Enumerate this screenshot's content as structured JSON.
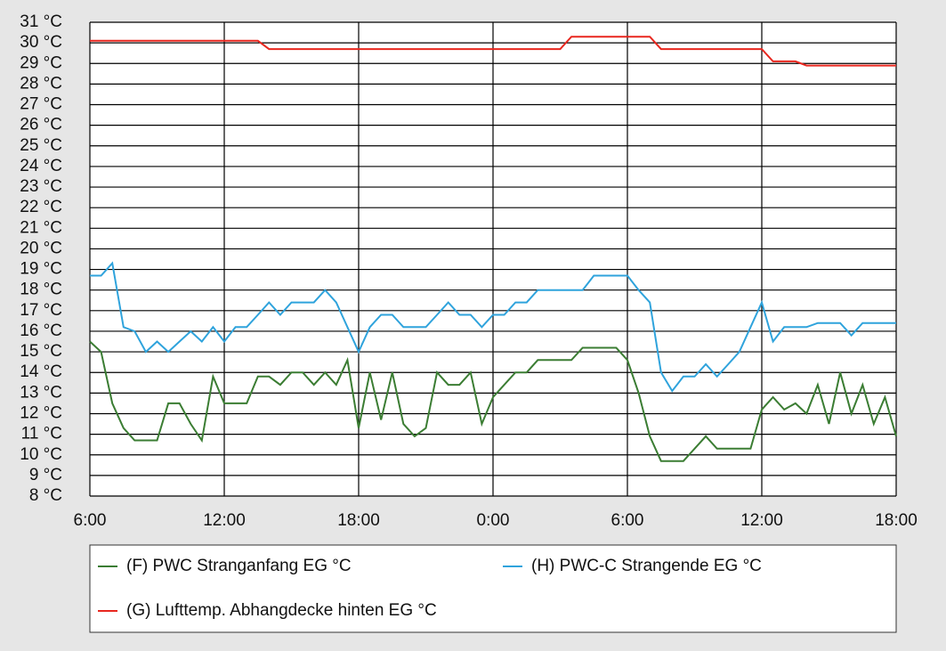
{
  "chart_data": {
    "type": "line",
    "x": [
      0,
      0.5,
      1,
      1.5,
      2,
      2.5,
      3,
      3.5,
      4,
      4.5,
      5,
      5.5,
      6,
      6.5,
      7,
      7.5,
      8,
      8.5,
      9,
      9.5,
      10,
      10.5,
      11,
      11.5,
      12,
      12.5,
      13,
      13.5,
      14,
      14.5,
      15,
      15.5,
      16,
      16.5,
      17,
      17.5,
      18,
      18.5,
      19,
      19.5,
      20,
      20.5,
      21,
      21.5,
      22,
      22.5,
      23,
      23.5,
      24,
      24.5,
      25,
      25.5,
      26,
      26.5,
      27,
      27.5,
      28,
      28.5,
      29,
      29.5,
      30,
      30.5,
      31,
      31.5,
      32,
      32.5,
      33,
      33.5,
      34,
      34.5,
      35,
      35.5,
      36
    ],
    "xlim": [
      0,
      36
    ],
    "xticks": [
      {
        "value": 0,
        "label": "6:00"
      },
      {
        "value": 6,
        "label": "12:00"
      },
      {
        "value": 12,
        "label": "18:00"
      },
      {
        "value": 18,
        "label": "0:00"
      },
      {
        "value": 24,
        "label": "6:00"
      },
      {
        "value": 30,
        "label": "12:00"
      },
      {
        "value": 36,
        "label": "18:00"
      }
    ],
    "ylim": [
      8,
      31
    ],
    "yticks": [
      {
        "value": 8,
        "label": "8 °C"
      },
      {
        "value": 9,
        "label": "9 °C"
      },
      {
        "value": 10,
        "label": "10 °C"
      },
      {
        "value": 11,
        "label": "11 °C"
      },
      {
        "value": 12,
        "label": "12 °C"
      },
      {
        "value": 13,
        "label": "13 °C"
      },
      {
        "value": 14,
        "label": "14 °C"
      },
      {
        "value": 15,
        "label": "15 °C"
      },
      {
        "value": 16,
        "label": "16 °C"
      },
      {
        "value": 17,
        "label": "17 °C"
      },
      {
        "value": 18,
        "label": "18 °C"
      },
      {
        "value": 19,
        "label": "19 °C"
      },
      {
        "value": 20,
        "label": "20 °C"
      },
      {
        "value": 21,
        "label": "21 °C"
      },
      {
        "value": 22,
        "label": "22 °C"
      },
      {
        "value": 23,
        "label": "23 °C"
      },
      {
        "value": 24,
        "label": "24 °C"
      },
      {
        "value": 25,
        "label": "25 °C"
      },
      {
        "value": 26,
        "label": "26 °C"
      },
      {
        "value": 27,
        "label": "27 °C"
      },
      {
        "value": 28,
        "label": "28 °C"
      },
      {
        "value": 29,
        "label": "29 °C"
      },
      {
        "value": 30,
        "label": "30 °C"
      },
      {
        "value": 31,
        "label": "31 °C"
      }
    ],
    "grid": true,
    "legend": "bottom",
    "series": [
      {
        "name": "(F) PWC Stranganfang EG °C",
        "color": "#3b7d33",
        "values": [
          15.5,
          15,
          12.5,
          11.3,
          10.7,
          10.7,
          10.7,
          12.5,
          12.5,
          11.5,
          10.7,
          13.8,
          12.5,
          12.5,
          12.5,
          13.8,
          13.8,
          13.4,
          14,
          14,
          13.4,
          14,
          13.4,
          14.6,
          11.3,
          14,
          11.7,
          14,
          11.5,
          10.9,
          11.3,
          14,
          13.4,
          13.4,
          14,
          11.5,
          12.8,
          13.4,
          14,
          14,
          14.6,
          14.6,
          14.6,
          14.6,
          15.2,
          15.2,
          15.2,
          15.2,
          14.6,
          13,
          10.9,
          9.7,
          9.7,
          9.7,
          10.3,
          10.9,
          10.3,
          10.3,
          10.3,
          10.3,
          12.2,
          12.8,
          12.2,
          12.5,
          12,
          13.4,
          11.5,
          14,
          12,
          13.4,
          11.5,
          12.8,
          10.9
        ]
      },
      {
        "name": "(H) PWC-C Strangende EG °C",
        "color": "#2fa3dc",
        "values": [
          18.7,
          18.7,
          19.3,
          16.2,
          16,
          15,
          15.5,
          15,
          15.5,
          16,
          15.5,
          16.2,
          15.5,
          16.2,
          16.2,
          16.8,
          17.4,
          16.8,
          17.4,
          17.4,
          17.4,
          18,
          17.4,
          16.2,
          15,
          16.2,
          16.8,
          16.8,
          16.2,
          16.2,
          16.2,
          16.8,
          17.4,
          16.8,
          16.8,
          16.2,
          16.8,
          16.8,
          17.4,
          17.4,
          18,
          18,
          18,
          18,
          18,
          18.7,
          18.7,
          18.7,
          18.7,
          18,
          17.4,
          14,
          13.1,
          13.8,
          13.8,
          14.4,
          13.8,
          14.4,
          15,
          16.2,
          17.4,
          15.5,
          16.2,
          16.2,
          16.2,
          16.4,
          16.4,
          16.4,
          15.8,
          16.4,
          16.4,
          16.4,
          16.4
        ]
      },
      {
        "name": "(G) Lufttemp. Abhangdecke hinten EG °C",
        "color": "#e8271f",
        "values": [
          30.1,
          30.1,
          30.1,
          30.1,
          30.1,
          30.1,
          30.1,
          30.1,
          30.1,
          30.1,
          30.1,
          30.1,
          30.1,
          30.1,
          30.1,
          30.1,
          29.7,
          29.7,
          29.7,
          29.7,
          29.7,
          29.7,
          29.7,
          29.7,
          29.7,
          29.7,
          29.7,
          29.7,
          29.7,
          29.7,
          29.7,
          29.7,
          29.7,
          29.7,
          29.7,
          29.7,
          29.7,
          29.7,
          29.7,
          29.7,
          29.7,
          29.7,
          29.7,
          30.3,
          30.3,
          30.3,
          30.3,
          30.3,
          30.3,
          30.3,
          30.3,
          29.7,
          29.7,
          29.7,
          29.7,
          29.7,
          29.7,
          29.7,
          29.7,
          29.7,
          29.7,
          29.1,
          29.1,
          29.1,
          28.9,
          28.9,
          28.9,
          28.9,
          28.9,
          28.9,
          28.9,
          28.9,
          28.9
        ]
      }
    ]
  }
}
